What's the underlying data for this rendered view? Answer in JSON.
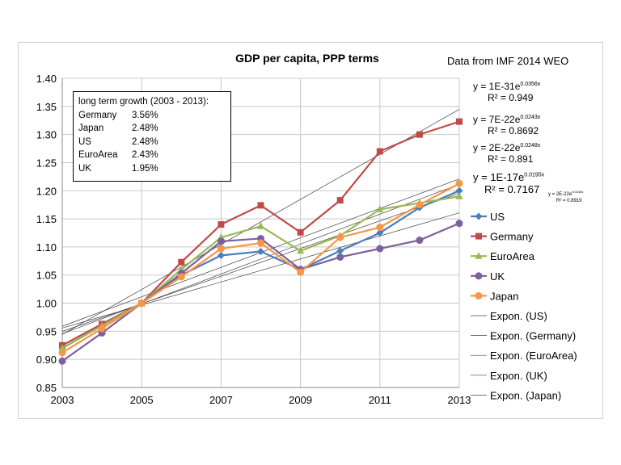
{
  "chart_data": {
    "type": "line",
    "title": "GDP per capita, PPP terms",
    "subtitle": "Data from IMF 2014 WEO",
    "x": [
      2003,
      2004,
      2005,
      2006,
      2007,
      2008,
      2009,
      2010,
      2011,
      2012,
      2013
    ],
    "xticks": [
      "2003",
      "2005",
      "2007",
      "2009",
      "2011",
      "2013"
    ],
    "yticks": [
      "0.85",
      "0.90",
      "0.95",
      "1.00",
      "1.05",
      "1.10",
      "1.15",
      "1.20",
      "1.25",
      "1.30",
      "1.35",
      "1.40"
    ],
    "xlim": [
      2003,
      2013
    ],
    "ylim": [
      0.85,
      1.4
    ],
    "grid": true,
    "legend_position": "right",
    "series": [
      {
        "name": "US",
        "color": "#4a7ebb",
        "marker": "diamond",
        "values": [
          0.92,
          0.96,
          1.0,
          1.05,
          1.085,
          1.092,
          1.06,
          1.093,
          1.125,
          1.17,
          1.2
        ]
      },
      {
        "name": "Germany",
        "color": "#be4b48",
        "marker": "square",
        "values": [
          0.925,
          0.963,
          1.0,
          1.073,
          1.14,
          1.174,
          1.126,
          1.183,
          1.27,
          1.3,
          1.323
        ]
      },
      {
        "name": "EuroArea",
        "color": "#98b954",
        "marker": "triangle",
        "values": [
          0.92,
          0.96,
          1.0,
          1.06,
          1.117,
          1.137,
          1.093,
          1.12,
          1.167,
          1.178,
          1.19
        ]
      },
      {
        "name": "UK",
        "color": "#7d60a0",
        "marker": "circle",
        "values": [
          0.897,
          0.947,
          1.0,
          1.053,
          1.11,
          1.115,
          1.06,
          1.082,
          1.097,
          1.112,
          1.142
        ]
      },
      {
        "name": "Japan",
        "color": "#f79646",
        "marker": "circle",
        "values": [
          0.912,
          0.955,
          1.0,
          1.047,
          1.097,
          1.107,
          1.055,
          1.117,
          1.135,
          1.175,
          1.213
        ]
      }
    ],
    "trendline_legend": [
      "Expon. (US)",
      "Expon. (Germany)",
      "Expon. (EuroArea)",
      "Expon. (UK)",
      "Expon. (Japan)"
    ],
    "trendline_color": "#404040",
    "equations": [
      {
        "eq": "y = 1E-31e",
        "exp": "0.0356x",
        "r2": "R² = 0.949"
      },
      {
        "eq": "y = 7E-22e",
        "exp": "0.0243x",
        "r2": "R² = 0.8692"
      },
      {
        "eq": "y = 2E-22e",
        "exp": "0.0248x",
        "r2": "R² = 0.891"
      },
      {
        "eq": "y = 1E-17e",
        "exp": "0.0195x",
        "r2": "R² = 0.7167"
      },
      {
        "eq": "y = 2E-22e",
        "exp": "0.0248x",
        "r2": "R² = 0.8919"
      }
    ],
    "annotation": {
      "title": "long term growth (2003 - 2013):",
      "rows": [
        [
          "Germany",
          "3.56%"
        ],
        [
          "Japan",
          "2.48%"
        ],
        [
          "US",
          "2.48%"
        ],
        [
          "EuroArea",
          "2.43%"
        ],
        [
          "UK",
          "1.95%"
        ]
      ]
    }
  }
}
